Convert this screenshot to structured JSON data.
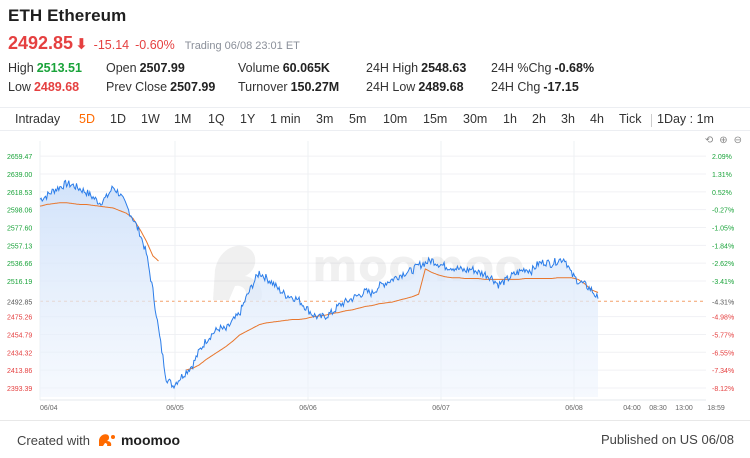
{
  "header": {
    "title": "ETH Ethereum",
    "price": "2492.85",
    "arrow": "⬇",
    "change": "-15.14",
    "change_pct": "-0.60%",
    "status": "Trading 06/08 23:01 ET"
  },
  "stats": {
    "high_label": "High",
    "high_value": "2513.51",
    "low_label": "Low",
    "low_value": "2489.68",
    "open_label": "Open",
    "open_value": "2507.99",
    "prev_close_label": "Prev Close",
    "prev_close_value": "2507.99",
    "volume_label": "Volume",
    "volume_value": "60.065K",
    "turnover_label": "Turnover",
    "turnover_value": "150.27M",
    "h24_high_label": "24H High",
    "h24_high_value": "2548.63",
    "h24_low_label": "24H Low",
    "h24_low_value": "2489.68",
    "h24_pctchg_label": "24H %Chg",
    "h24_pctchg_value": "-0.68%",
    "h24_chg_label": "24H Chg",
    "h24_chg_value": "-17.15"
  },
  "tabs": [
    {
      "label": "Intraday"
    },
    {
      "label": "5D"
    },
    {
      "label": "1D"
    },
    {
      "label": "1W"
    },
    {
      "label": "1M"
    },
    {
      "label": "1Q"
    },
    {
      "label": "1Y"
    },
    {
      "label": "1 min"
    },
    {
      "label": "3m"
    },
    {
      "label": "5m"
    },
    {
      "label": "10m"
    },
    {
      "label": "15m"
    },
    {
      "label": "30m"
    },
    {
      "label": "1h"
    },
    {
      "label": "2h"
    },
    {
      "label": "3h"
    },
    {
      "label": "4h"
    },
    {
      "label": "Tick"
    },
    {
      "label": "1Day : 1m"
    }
  ],
  "active_tab": "5D",
  "colors": {
    "up": "#1aa33a",
    "down": "#e54040",
    "accent": "#ff6a00",
    "price_line": "#2b7de9",
    "avg_line": "#e8762c",
    "area_fill": "#dbe9fb"
  },
  "chart_data": {
    "type": "line",
    "title": "",
    "ylim": [
      2383,
      2670
    ],
    "y_ticks_left": [
      "2659.47",
      "2639.00",
      "2618.53",
      "2598.06",
      "2577.60",
      "2557.13",
      "2536.66",
      "2516.19",
      "2492.85",
      "2475.26",
      "2454.79",
      "2434.32",
      "2413.86",
      "2393.39"
    ],
    "y_ticks_right": [
      "2.09%",
      "1.31%",
      "0.52%",
      "-0.27%",
      "-1.05%",
      "-1.84%",
      "-2.62%",
      "-3.41%",
      "-4.31%",
      "-4.98%",
      "-5.77%",
      "-6.55%",
      "-7.34%",
      "-8.12%"
    ],
    "x_ticks": [
      "06/04",
      "06/05",
      "06/06",
      "06/07",
      "06/08",
      "04:00",
      "08:30",
      "13:00",
      "18:59"
    ],
    "reference_price": 2492.85,
    "watermark": "moomoo",
    "series": [
      {
        "values": [
          2610,
          2614,
          2620,
          2624,
          2628,
          2626,
          2622,
          2618,
          2612,
          2606,
          2612,
          2624,
          2616,
          2602,
          2588,
          2572,
          2548,
          2505,
          2452,
          2405,
          2396,
          2404,
          2412,
          2420,
          2436,
          2448,
          2456,
          2462,
          2460,
          2470,
          2478,
          2496,
          2512,
          2526,
          2520,
          2514,
          2506,
          2500,
          2498,
          2494,
          2486,
          2478,
          2474,
          2476,
          2480,
          2488,
          2492,
          2496,
          2500,
          2504,
          2502,
          2510,
          2514,
          2518,
          2522,
          2526,
          2528,
          2534,
          2537,
          2540,
          2536,
          2533,
          2532,
          2530,
          2528,
          2530,
          2526,
          2524,
          2520,
          2512,
          2516,
          2522,
          2526,
          2530,
          2528,
          2536,
          2538,
          2536,
          2540,
          2542,
          2524,
          2516,
          2512,
          2506,
          2496
        ]
      },
      {
        "values": [
          2602,
          2604,
          2605,
          2606,
          2606,
          2605,
          2604,
          2604,
          2603,
          2602,
          2601,
          2600,
          2597,
          2594,
          2588,
          2576,
          2562,
          2545,
          2538,
          null,
          null,
          null,
          2414,
          2416,
          2420,
          2426,
          2431,
          2436,
          2441,
          2447,
          2454,
          2458,
          2462,
          2466,
          2468,
          2469,
          2470,
          2471,
          2472,
          2472,
          2473,
          2475,
          2476,
          2477,
          2479,
          2480,
          2482,
          2483,
          2485,
          2487,
          2488,
          2490,
          2491,
          2492,
          2494,
          2496,
          2498,
          2501,
          2530,
          2526,
          2523,
          2521,
          2520,
          2520,
          2519,
          2519,
          2519,
          2518,
          2518,
          2518,
          2518,
          2518,
          2518,
          2519,
          2519,
          2519,
          2519,
          2519,
          2520,
          2520,
          2520,
          2518,
          2513,
          2506,
          2503
        ]
      }
    ]
  },
  "footer": {
    "created_with": "Created with",
    "logo_text": "moomoo",
    "published": "Published on US 06/08"
  }
}
